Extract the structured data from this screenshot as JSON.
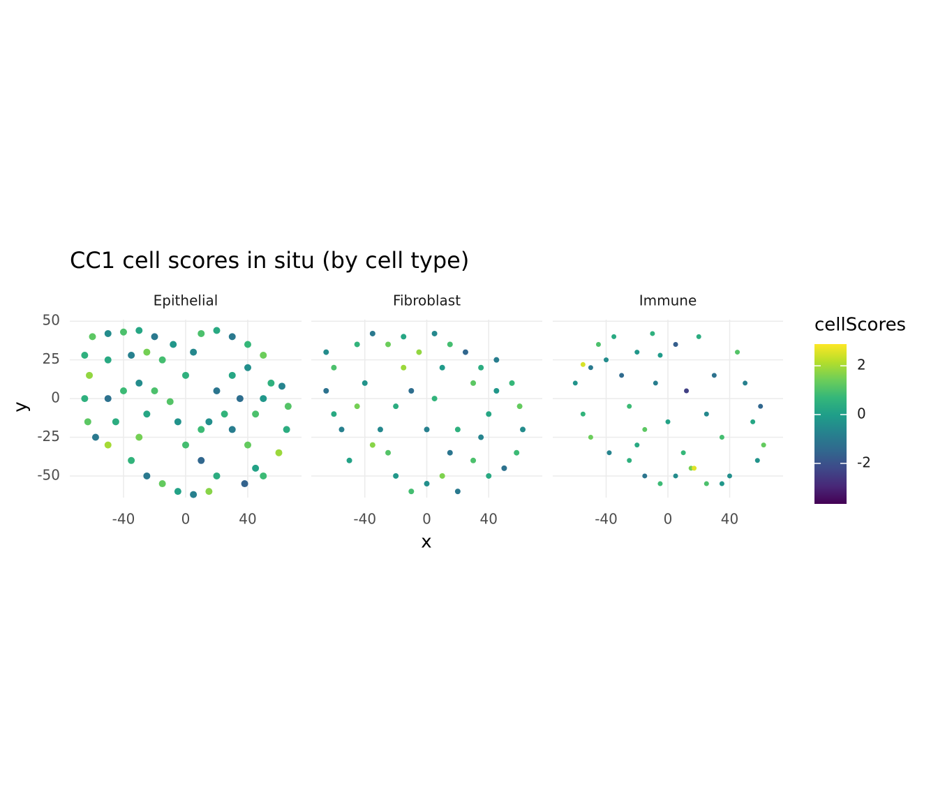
{
  "title": "CC1 cell scores in situ (by cell type)",
  "x_label": "x",
  "y_label": "y",
  "colorbar": {
    "title": "cellScores",
    "lim": [
      -3.66,
      2.89
    ],
    "ticks": [
      -2,
      0,
      2
    ],
    "colors": [
      "#440154",
      "#482878",
      "#3e4989",
      "#31688e",
      "#26828e",
      "#1f9e89",
      "#35b779",
      "#6ece58",
      "#b5de2b",
      "#fde725"
    ]
  },
  "chart_data": [
    {
      "type": "scatter",
      "facet": "Epithelial",
      "xlim": [
        -74.6,
        74.6
      ],
      "ylim": [
        -64,
        51
      ],
      "xticks": [
        -40,
        0,
        40
      ],
      "yticks": [
        -50,
        -25,
        0,
        25,
        50
      ],
      "grid": true,
      "point_radius": 5,
      "x": [
        -65,
        -60,
        -50,
        -40,
        -30,
        -20,
        -25,
        -35,
        -50,
        -62,
        -65,
        -63,
        -58,
        -50,
        -45,
        -50,
        -40,
        -30,
        -20,
        -25,
        -30,
        -35,
        -25,
        -15,
        -5,
        5,
        15,
        20,
        10,
        0,
        -5,
        -10,
        0,
        5,
        10,
        20,
        30,
        40,
        50,
        40,
        30,
        20,
        25,
        30,
        40,
        45,
        38,
        50,
        60,
        65,
        66,
        62,
        55,
        50,
        45,
        15,
        10,
        35,
        -15,
        -8
      ],
      "y": [
        28,
        40,
        42,
        43,
        44,
        40,
        30,
        28,
        25,
        15,
        0,
        -15,
        -25,
        -30,
        -15,
        0,
        5,
        10,
        5,
        -10,
        -25,
        -40,
        -50,
        -55,
        -60,
        -62,
        -60,
        -50,
        -40,
        -30,
        -15,
        -2,
        15,
        30,
        42,
        44,
        40,
        35,
        28,
        20,
        15,
        5,
        -10,
        -20,
        -30,
        -45,
        -55,
        -50,
        -35,
        -20,
        -5,
        8,
        10,
        0,
        -10,
        -15,
        -20,
        0,
        25,
        35
      ],
      "values": [
        0.5,
        1.2,
        -0.5,
        1,
        0.2,
        -1,
        1.5,
        -0.8,
        0.3,
        1.8,
        0.5,
        1.2,
        -1,
        2,
        0.4,
        -1.2,
        0.8,
        -0.5,
        1,
        0.2,
        1.5,
        0.6,
        -1,
        1.3,
        0.1,
        -0.8,
        1.7,
        0.4,
        -1.5,
        0.9,
        -0.3,
        1.1,
        0.5,
        -0.6,
        1,
        0.3,
        -1,
        0.7,
        1.4,
        -0.4,
        0.2,
        -1.1,
        0.6,
        -0.9,
        1.3,
        0.1,
        -1.6,
        0.8,
        1.9,
        0.4,
        1.1,
        -0.7,
        0.5,
        -0.2,
        1,
        -0.4,
        0.8,
        -1.3,
        0.9,
        -0.2
      ]
    },
    {
      "type": "scatter",
      "facet": "Fibroblast",
      "xlim": [
        -74.6,
        74.6
      ],
      "ylim": [
        -64,
        51
      ],
      "xticks": [
        -40,
        0,
        40
      ],
      "yticks": [
        -50,
        -25,
        0,
        25,
        50
      ],
      "grid": true,
      "point_radius": 4,
      "x": [
        -65,
        -60,
        -65,
        -60,
        -55,
        -45,
        -40,
        -45,
        -35,
        -25,
        -15,
        -5,
        5,
        15,
        25,
        35,
        45,
        30,
        45,
        55,
        60,
        62,
        58,
        50,
        40,
        30,
        35,
        20,
        15,
        10,
        0,
        -10,
        -20,
        -25,
        -30,
        -20,
        -10,
        5,
        0,
        -35,
        -50,
        20,
        40,
        -15,
        10
      ],
      "y": [
        30,
        20,
        5,
        -10,
        -20,
        -5,
        10,
        35,
        42,
        35,
        40,
        30,
        42,
        35,
        30,
        20,
        25,
        10,
        5,
        10,
        -5,
        -20,
        -35,
        -45,
        -50,
        -40,
        -25,
        -20,
        -35,
        -50,
        -55,
        -60,
        -50,
        -35,
        -20,
        -5,
        5,
        0,
        -20,
        -30,
        -40,
        -60,
        -10,
        20,
        20
      ],
      "values": [
        -0.5,
        1,
        -1.2,
        0.3,
        -0.8,
        1.5,
        -0.3,
        0.6,
        -1,
        1.4,
        0.2,
        1.8,
        -0.6,
        0.9,
        -1.5,
        0.4,
        -0.9,
        1.2,
        -0.2,
        0.7,
        1.3,
        -0.5,
        0.8,
        -1.2,
        0.3,
        1,
        -0.7,
        0.5,
        -1.1,
        1.6,
        -0.4,
        0.9,
        -0.2,
        1.1,
        -0.6,
        0.4,
        -1.3,
        0.6,
        -0.8,
        1.7,
        0.1,
        -1,
        0.2,
        1.9,
        -0.1
      ]
    },
    {
      "type": "scatter",
      "facet": "Immune",
      "xlim": [
        -74.6,
        74.6
      ],
      "ylim": [
        -64,
        51
      ],
      "xticks": [
        -40,
        0,
        40
      ],
      "yticks": [
        -50,
        -25,
        0,
        25,
        50
      ],
      "grid": true,
      "point_radius": 3.5,
      "x": [
        -60,
        -55,
        -50,
        -45,
        -40,
        -35,
        -30,
        -25,
        -20,
        -15,
        -10,
        -8,
        0,
        5,
        10,
        15,
        20,
        25,
        30,
        35,
        40,
        45,
        50,
        55,
        60,
        62,
        58,
        -50,
        -38,
        -25,
        -15,
        -5,
        5,
        25,
        35,
        -55,
        17,
        -5,
        -20,
        12
      ],
      "y": [
        10,
        -10,
        20,
        35,
        25,
        40,
        15,
        -5,
        30,
        -20,
        42,
        10,
        -15,
        35,
        -35,
        -45,
        40,
        -10,
        15,
        -25,
        -50,
        30,
        10,
        -15,
        -5,
        -30,
        -40,
        -25,
        -35,
        -40,
        -50,
        -55,
        -50,
        -55,
        -55,
        22,
        -45,
        28,
        -30,
        5
      ],
      "values": [
        -0.3,
        0.6,
        -1,
        1,
        -0.5,
        0.3,
        -1.4,
        0.8,
        -0.2,
        1.2,
        0.5,
        -0.9,
        0.1,
        -1.7,
        0.7,
        1.5,
        0.4,
        -0.6,
        -1.2,
        0.9,
        -0.4,
        1.1,
        -0.8,
        0.2,
        -1.5,
        1.3,
        -0.3,
        1.4,
        -0.7,
        0.5,
        -1.1,
        0.8,
        -0.5,
        1,
        -0.2,
        2.5,
        2.6,
        -0.1,
        0.3,
        -2.4
      ]
    }
  ]
}
